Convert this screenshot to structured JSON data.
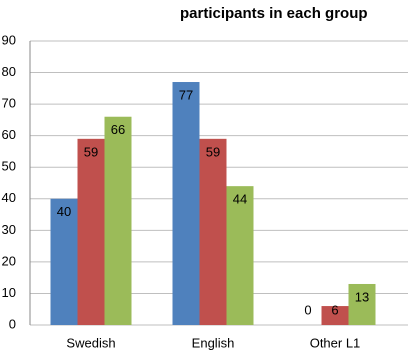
{
  "chart_data": {
    "type": "bar",
    "title": "participants in each group",
    "categories": [
      "Swedish",
      "English",
      "Other L1"
    ],
    "series": [
      {
        "color": "#4f81bd",
        "values": [
          40,
          77,
          0
        ]
      },
      {
        "color": "#c0504d",
        "values": [
          59,
          59,
          6
        ]
      },
      {
        "color": "#9bbb59",
        "values": [
          66,
          44,
          13
        ]
      }
    ],
    "ylim": [
      0,
      90
    ],
    "yticks": [
      0,
      10,
      20,
      30,
      40,
      50,
      60,
      70,
      80,
      90
    ],
    "grid": true
  }
}
